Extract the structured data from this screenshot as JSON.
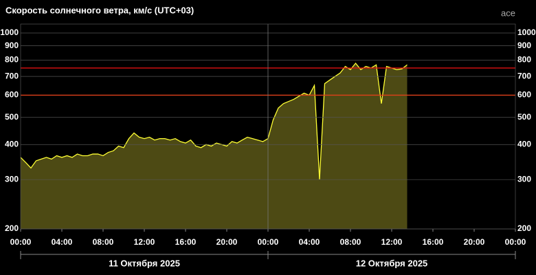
{
  "chart_data": {
    "type": "area-line",
    "title": "Скорость солнечного ветра, км/с (UTC+03)",
    "source": "ace",
    "x": [
      0,
      0.5,
      1,
      1.5,
      2,
      2.5,
      3,
      3.5,
      4,
      4.5,
      5,
      5.5,
      6,
      6.5,
      7,
      7.5,
      8,
      8.5,
      9,
      9.5,
      10,
      10.5,
      11,
      11.5,
      12,
      12.5,
      13,
      13.5,
      14,
      14.5,
      15,
      15.5,
      16,
      16.5,
      17,
      17.5,
      18,
      18.5,
      19,
      19.5,
      20,
      20.5,
      21,
      21.5,
      22,
      22.5,
      23,
      23.5,
      24,
      24.5,
      25,
      25.5,
      26,
      26.5,
      27,
      27.5,
      28,
      28.5,
      29,
      29.5,
      30,
      30.5,
      31,
      31.5,
      32,
      32.5,
      33,
      33.5,
      34,
      34.5,
      35,
      35.5,
      36,
      36.5,
      37,
      37.5
    ],
    "series": [
      {
        "color": "#ffff33",
        "fill": "#4d4a14",
        "values": [
          360,
          345,
          330,
          350,
          355,
          360,
          355,
          365,
          360,
          365,
          360,
          370,
          365,
          365,
          370,
          370,
          365,
          375,
          380,
          395,
          390,
          420,
          440,
          425,
          420,
          425,
          415,
          420,
          420,
          415,
          420,
          410,
          405,
          415,
          395,
          390,
          400,
          395,
          405,
          400,
          395,
          410,
          405,
          415,
          425,
          420,
          415,
          410,
          420,
          490,
          540,
          560,
          570,
          580,
          595,
          610,
          600,
          650,
          300,
          660,
          680,
          700,
          720,
          760,
          740,
          780,
          740,
          760,
          750,
          770,
          560,
          760,
          750,
          740,
          745,
          770
        ]
      }
    ],
    "xlim": [
      0,
      48
    ],
    "xticks": [
      {
        "value": 0,
        "label": "00:00"
      },
      {
        "value": 4,
        "label": "04:00"
      },
      {
        "value": 8,
        "label": "08:00"
      },
      {
        "value": 12,
        "label": "12:00"
      },
      {
        "value": 16,
        "label": "16:00"
      },
      {
        "value": 20,
        "label": "20:00"
      },
      {
        "value": 24,
        "label": "00:00"
      },
      {
        "value": 28,
        "label": "04:00"
      },
      {
        "value": 32,
        "label": "08:00"
      },
      {
        "value": 36,
        "label": "12:00"
      },
      {
        "value": 40,
        "label": "16:00"
      },
      {
        "value": 44,
        "label": "20:00"
      },
      {
        "value": 48,
        "label": "00:00"
      }
    ],
    "x_group_labels": [
      "11 Октября 2025",
      "12 Октября 2025"
    ],
    "ylim": [
      200,
      1000
    ],
    "log_y": true,
    "yticks": [
      200,
      300,
      400,
      500,
      600,
      700,
      800,
      900,
      1000
    ],
    "grid": true,
    "thresholds": [
      {
        "value": 750,
        "color": "#e01010"
      },
      {
        "value": 600,
        "color": "#e0401a"
      }
    ]
  }
}
